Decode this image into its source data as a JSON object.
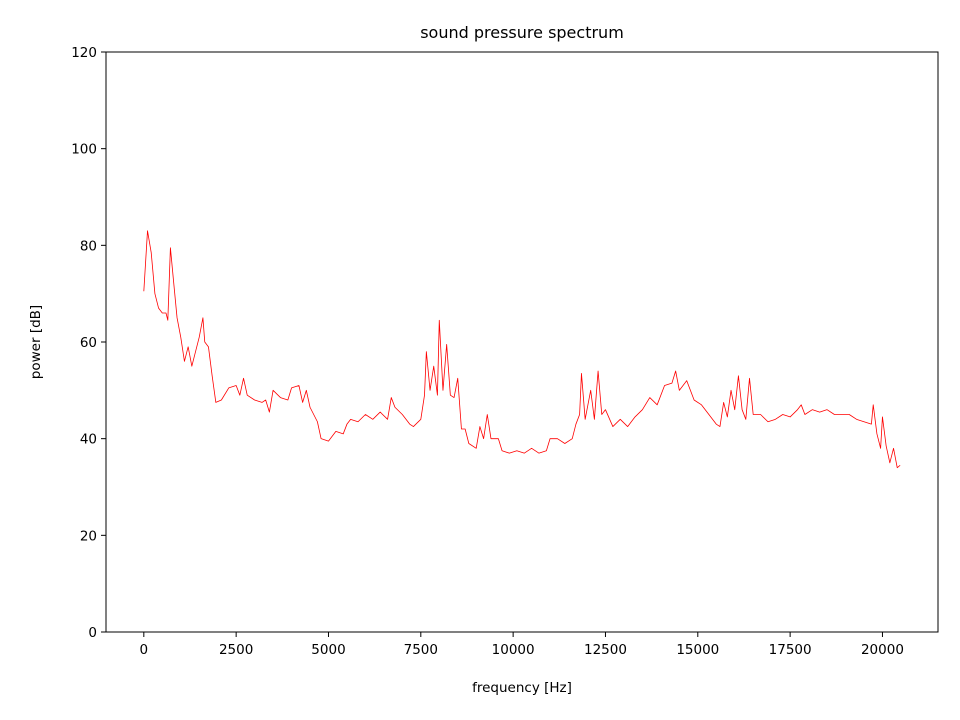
{
  "chart_data": {
    "type": "line",
    "title": "sound pressure spectrum",
    "x_label": "frequency [Hz]",
    "y_label": "power [dB]",
    "x": [
      0,
      100,
      200,
      300,
      400,
      500,
      600,
      650,
      720,
      800,
      900,
      1000,
      1100,
      1200,
      1300,
      1400,
      1500,
      1600,
      1650,
      1750,
      1850,
      1950,
      2100,
      2300,
      2500,
      2600,
      2700,
      2800,
      3000,
      3200,
      3300,
      3400,
      3500,
      3700,
      3900,
      4000,
      4200,
      4300,
      4400,
      4500,
      4700,
      4800,
      5000,
      5200,
      5400,
      5500,
      5600,
      5800,
      6000,
      6200,
      6400,
      6600,
      6700,
      6800,
      7000,
      7200,
      7300,
      7500,
      7600,
      7650,
      7750,
      7850,
      7950,
      8000,
      8100,
      8200,
      8300,
      8400,
      8500,
      8600,
      8700,
      8800,
      9000,
      9100,
      9200,
      9300,
      9400,
      9600,
      9700,
      9900,
      10100,
      10300,
      10500,
      10700,
      10900,
      11000,
      11200,
      11400,
      11600,
      11700,
      11800,
      11850,
      11950,
      12100,
      12200,
      12300,
      12400,
      12500,
      12700,
      12900,
      13100,
      13300,
      13500,
      13700,
      13900,
      14100,
      14300,
      14400,
      14500,
      14700,
      14900,
      15100,
      15300,
      15500,
      15600,
      15700,
      15800,
      15900,
      16000,
      16100,
      16200,
      16300,
      16400,
      16500,
      16700,
      16900,
      17100,
      17300,
      17500,
      17700,
      17800,
      17900,
      18100,
      18300,
      18500,
      18700,
      18900,
      19100,
      19300,
      19500,
      19700,
      19750,
      19850,
      19950,
      20000,
      20100,
      20200,
      20300,
      20400,
      20480
    ],
    "series": [
      {
        "name": "power",
        "color": "#ff0000",
        "values": [
          70.5,
          83,
          78.5,
          70,
          67,
          66,
          66,
          64.5,
          79.5,
          73,
          65,
          61,
          56,
          59,
          55,
          58,
          61,
          65,
          60,
          59,
          53,
          47.5,
          48,
          50.5,
          51,
          49,
          52.5,
          49,
          48,
          47.5,
          48,
          45.5,
          50,
          48.5,
          48,
          50.5,
          51,
          47.5,
          50,
          46.5,
          43.5,
          40,
          39.5,
          41.5,
          41,
          43,
          44,
          43.5,
          45,
          44,
          45.5,
          44,
          48.5,
          46.5,
          45,
          43,
          42.5,
          44,
          49,
          58,
          50,
          55,
          49,
          64.5,
          50,
          59.5,
          49,
          48.5,
          52.5,
          42,
          42,
          39,
          38,
          42.5,
          40,
          45,
          40,
          40,
          37.5,
          37,
          37.5,
          37,
          38,
          37,
          37.5,
          40,
          40,
          39,
          40,
          43,
          45,
          53.5,
          44,
          50,
          44,
          54,
          45,
          46,
          42.5,
          44,
          42.5,
          44.5,
          46,
          48.5,
          47,
          51,
          51.5,
          54,
          50,
          52,
          48,
          47,
          45,
          43,
          42.5,
          47.5,
          44.5,
          50,
          46,
          53,
          46,
          44,
          52.5,
          45,
          45,
          43.5,
          44,
          45,
          44.5,
          46,
          47,
          45,
          46,
          45.5,
          46,
          45,
          45,
          45,
          44,
          43.5,
          43,
          47,
          41,
          38,
          44.5,
          38.5,
          35,
          38,
          34,
          34.5
        ]
      }
    ],
    "xlim": [
      -1024,
      21504
    ],
    "ylim": [
      0,
      120
    ],
    "xticks": [
      0,
      2500,
      5000,
      7500,
      10000,
      12500,
      15000,
      17500,
      20000
    ],
    "yticks": [
      0,
      20,
      40,
      60,
      80,
      100,
      120
    ]
  }
}
